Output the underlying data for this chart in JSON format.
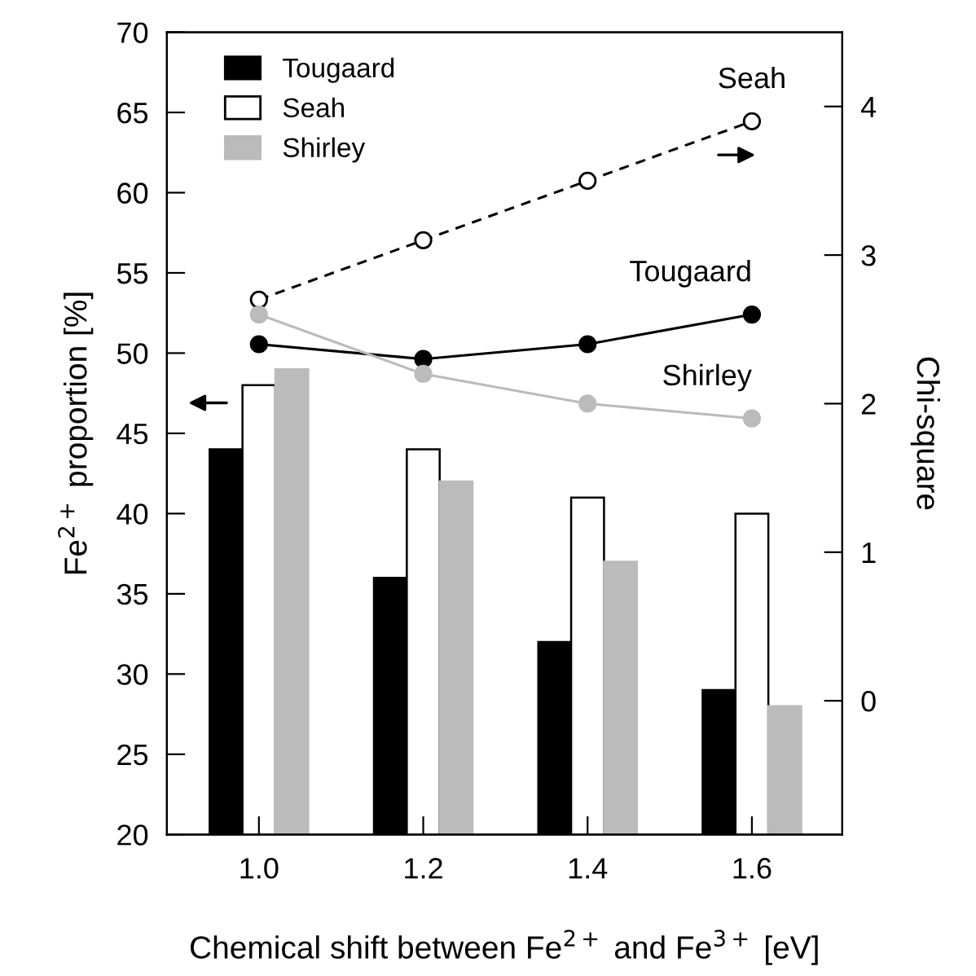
{
  "chart_data": {
    "type": "bar",
    "categories": [
      "1.0",
      "1.2",
      "1.4",
      "1.6"
    ],
    "xlabel": "Chemical shift between Fe$^{2+}$ and Fe$^{3+}$ [eV]",
    "ylabel": "Fe$^{2+}$ proportion [%]",
    "y2label": "Chi-square",
    "ylim": [
      20,
      70
    ],
    "yticks": [
      20,
      25,
      30,
      35,
      40,
      45,
      50,
      55,
      60,
      65,
      70
    ],
    "y2lim": [
      -0.9,
      4.5
    ],
    "y2ticks": [
      0,
      1,
      2,
      3,
      4
    ],
    "legend": "top left",
    "grid": false,
    "series": [
      {
        "name": "Tougaard",
        "color": "#000000",
        "values": [
          44,
          36,
          32,
          29
        ]
      },
      {
        "name": "Seah",
        "color": "#ffffff",
        "values": [
          48,
          44,
          41,
          40
        ]
      },
      {
        "name": "Shirley",
        "color": "#bbbbbb",
        "values": [
          49,
          42,
          37,
          28
        ]
      },
      {
        "name": "Tougaard",
        "type": "line",
        "axis": "y2",
        "color": "#000000",
        "marker": "circle",
        "line_style": "solid",
        "values": [
          2.4,
          2.3,
          2.4,
          2.6
        ]
      },
      {
        "name": "Seah",
        "type": "line",
        "axis": "y2",
        "color": "#000000",
        "marker": "circle",
        "line_style": "dashed",
        "values": [
          2.7,
          3.1,
          3.5,
          3.9
        ]
      },
      {
        "name": "Shirley",
        "type": "line",
        "axis": "y2",
        "color": "#bbbbbb",
        "marker": "circle",
        "line_style": "solid",
        "values": [
          2.6,
          2.2,
          2.0,
          1.9
        ]
      }
    ]
  }
}
